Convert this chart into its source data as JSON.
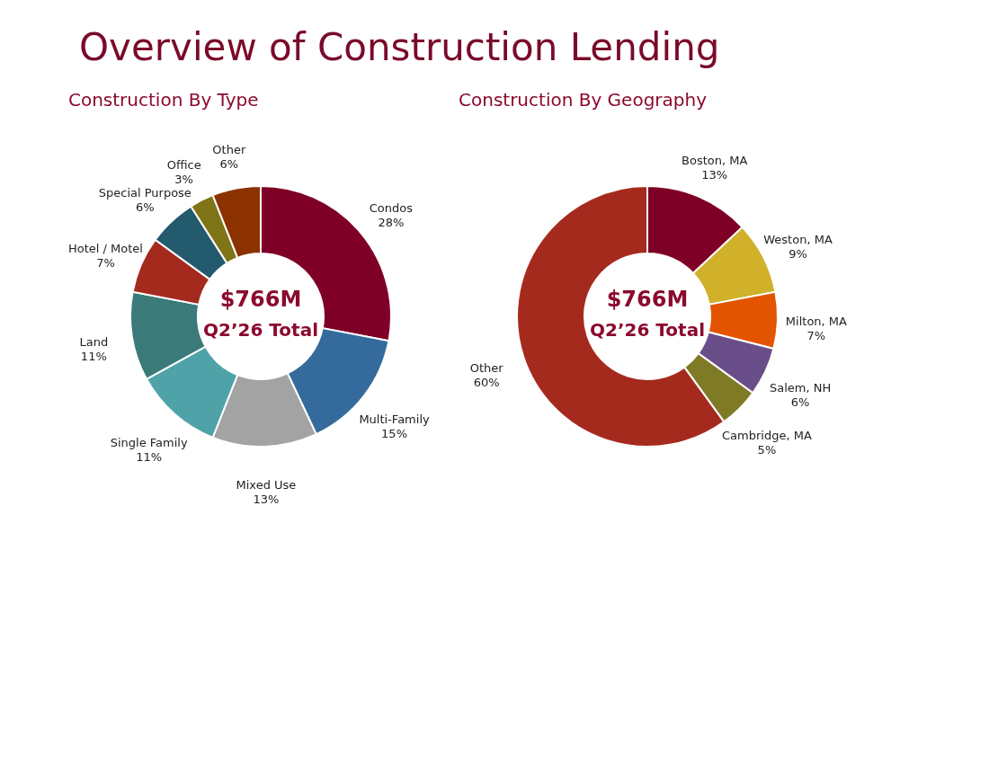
{
  "chart_data": [
    {
      "type": "donut",
      "title": "Construction By Type",
      "categories": [
        "Condos",
        "Multi-Family",
        "Mixed Use",
        "Single Family",
        "Land",
        "Hotel / Motel",
        "Special Purpose",
        "Office",
        "Other"
      ],
      "values": [
        28,
        15,
        13,
        11,
        11,
        7,
        6,
        3,
        6
      ],
      "colors": [
        "#7f0027",
        "#356b9c",
        "#a3a3a3",
        "#4fa3a8",
        "#3a7a78",
        "#a52a1e",
        "#235a6d",
        "#7f7416",
        "#8b3200"
      ],
      "value_labels": [
        "28%",
        "15%",
        "13%",
        "11%",
        "11%",
        "7%",
        "6%",
        "3%",
        "6%"
      ],
      "annotations": [
        "Overview of Construction Lending",
        "$766M",
        "Q2’26 Total"
      ]
    },
    {
      "type": "donut",
      "title": "Construction By Geography",
      "categories": [
        "Boston, MA",
        "Weston, MA",
        "Milton, MA",
        "Salem, NH",
        "Cambridge, MA",
        "Other"
      ],
      "values": [
        13,
        9,
        7,
        6,
        5,
        60
      ],
      "colors": [
        "#7f0027",
        "#d1b02a",
        "#e35400",
        "#6a4e8a",
        "#7f7a26",
        "#a52a1e"
      ],
      "value_labels": [
        "13%",
        "9%",
        "7%",
        "6%",
        "5%",
        "60%"
      ],
      "annotations": [
        "$766M",
        "Q2’26 Total"
      ]
    }
  ]
}
